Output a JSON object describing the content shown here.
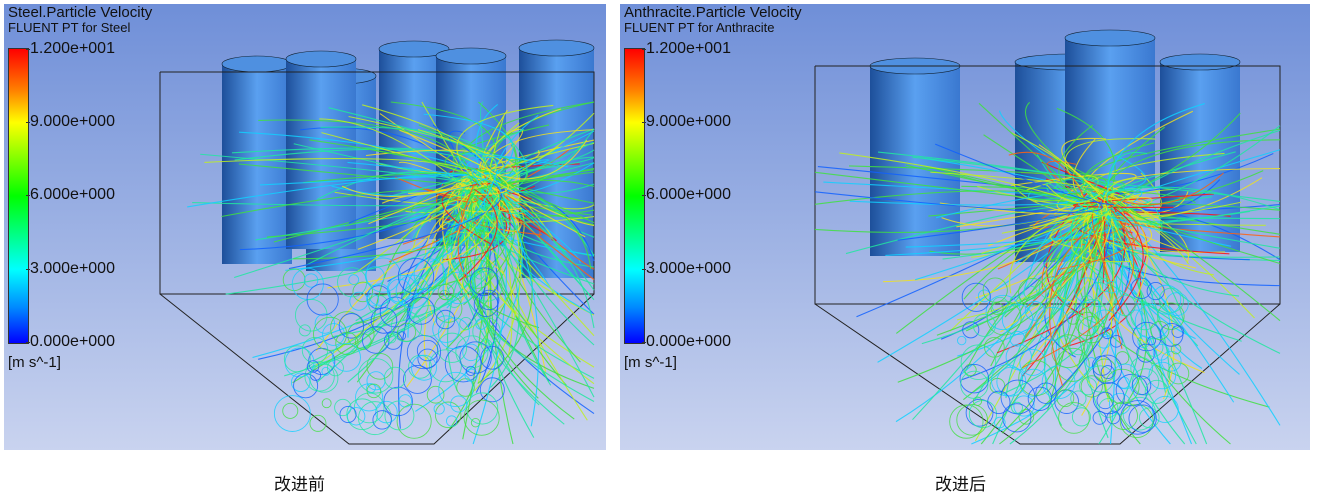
{
  "panels": [
    {
      "title": "Steel.Particle Velocity",
      "subtitle": "FLUENT PT for Steel",
      "legend_ticks": [
        "1.200e+001",
        "9.000e+000",
        "6.000e+000",
        "3.000e+000",
        "0.000e+000"
      ],
      "unit": "[m s^-1]",
      "colormap": [
        "#0000ff",
        "#00ffff",
        "#00ff00",
        "#ffff00",
        "#ff0000"
      ],
      "caption": "改进前"
    },
    {
      "title": "Anthracite.Particle Velocity",
      "subtitle": "FLUENT PT for Anthracite",
      "legend_ticks": [
        "1.200e+001",
        "9.000e+000",
        "6.000e+000",
        "3.000e+000",
        "0.000e+000"
      ],
      "unit": "[m s^-1]",
      "colormap": [
        "#0000ff",
        "#00ffff",
        "#00ff00",
        "#ffff00",
        "#ff0000"
      ],
      "caption": "改进后"
    }
  ]
}
